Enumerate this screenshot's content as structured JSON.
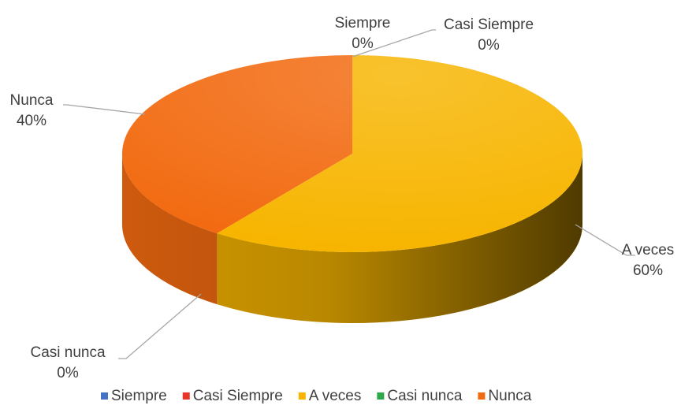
{
  "chart_data": {
    "type": "pie",
    "categories": [
      "Siempre",
      "Casi Siempre",
      "A veces",
      "Casi nunca",
      "Nunca"
    ],
    "values": [
      0,
      0,
      60,
      0,
      40
    ],
    "value_labels": [
      "0%",
      "0%",
      "60%",
      "0%",
      "40%"
    ],
    "colors": [
      "#4472c4",
      "#e8352b",
      "#f7b500",
      "#2ea84a",
      "#f26a10"
    ],
    "legend": "bottom"
  }
}
